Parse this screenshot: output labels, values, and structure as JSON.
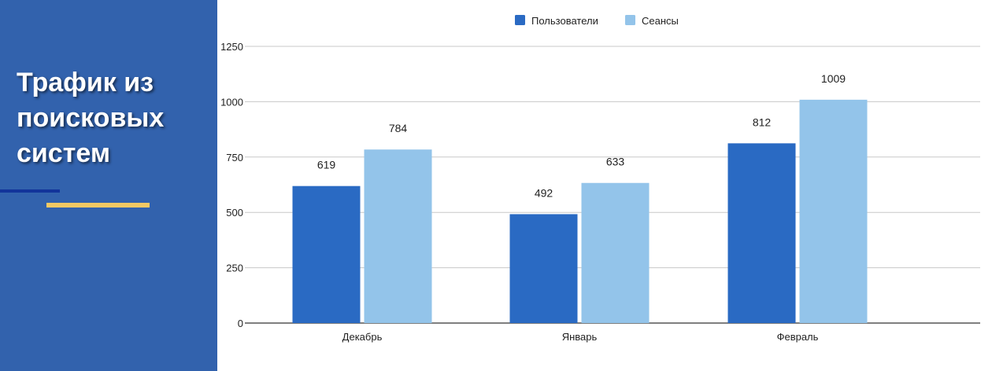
{
  "side": {
    "title": "Трафик из\nпоисковых\nсистем"
  },
  "colors": {
    "panel": "#3262ad",
    "accent_dark": "#12349a",
    "accent_gold": "#f2c964"
  },
  "chart_data": {
    "type": "bar",
    "categories": [
      "Декабрь",
      "Январь",
      "Февраль"
    ],
    "series": [
      {
        "name": "Пользователи",
        "values": [
          619,
          492,
          812
        ],
        "color": "#2a6ac3"
      },
      {
        "name": "Сеансы",
        "values": [
          784,
          633,
          1009
        ],
        "color": "#93c4ea"
      }
    ],
    "ylim": [
      0,
      1250
    ],
    "yticks": [
      0,
      250,
      500,
      750,
      1000,
      1250
    ],
    "grid": true,
    "legend": "top-center",
    "data_labels": true
  }
}
